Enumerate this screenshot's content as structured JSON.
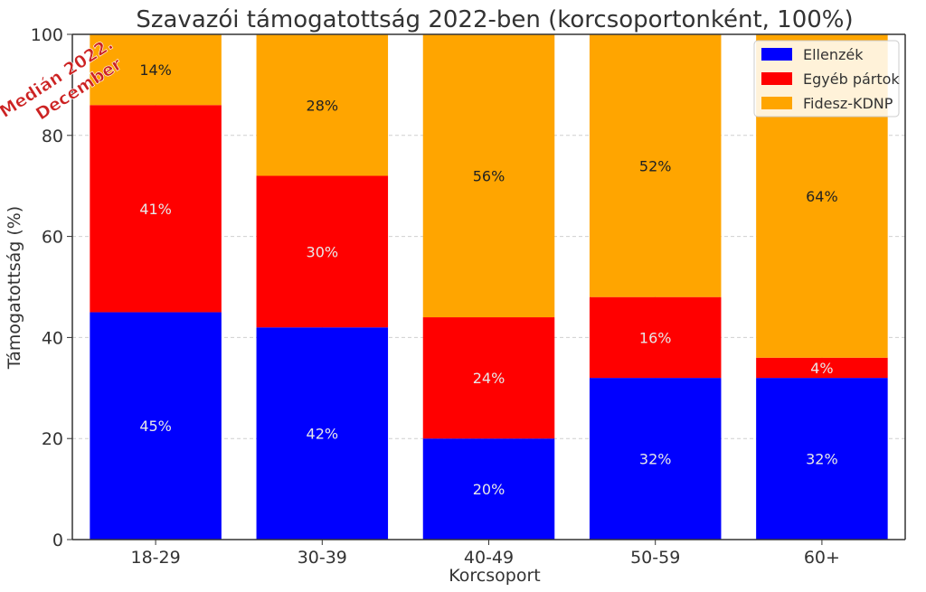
{
  "chart_data": {
    "type": "bar",
    "stacked": true,
    "title": "Szavazói támogatottság 2022-ben (korcsoportonként, 100%)",
    "xlabel": "Korcsoport",
    "ylabel": "Támogatottság (%)",
    "ylim": [
      0,
      100
    ],
    "yticks": [
      "0",
      "20",
      "40",
      "60",
      "80",
      "100"
    ],
    "categories": [
      "18-29",
      "30-39",
      "40-49",
      "50-59",
      "60+"
    ],
    "series": [
      {
        "name": "Ellenzék",
        "color": "#0000ff",
        "values": [
          45,
          42,
          20,
          32,
          32
        ],
        "labels": [
          "45%",
          "42%",
          "20%",
          "32%",
          "32%"
        ],
        "label_color": "#e8e8e8"
      },
      {
        "name": "Egyéb pártok",
        "color": "#ff0000",
        "values": [
          41,
          30,
          24,
          16,
          4
        ],
        "labels": [
          "41%",
          "30%",
          "24%",
          "16%",
          "4%"
        ],
        "label_color": "#e8e8e8"
      },
      {
        "name": "Fidesz-KDNP",
        "color": "#ffa500",
        "values": [
          14,
          28,
          56,
          52,
          64
        ],
        "labels": [
          "14%",
          "28%",
          "56%",
          "52%",
          "64%"
        ],
        "label_color": "#222222"
      }
    ],
    "grid": true,
    "legend_position": "top-right",
    "annotation": {
      "lines": [
        "Medián 2022.",
        "December"
      ],
      "color": "#cc2222"
    }
  }
}
